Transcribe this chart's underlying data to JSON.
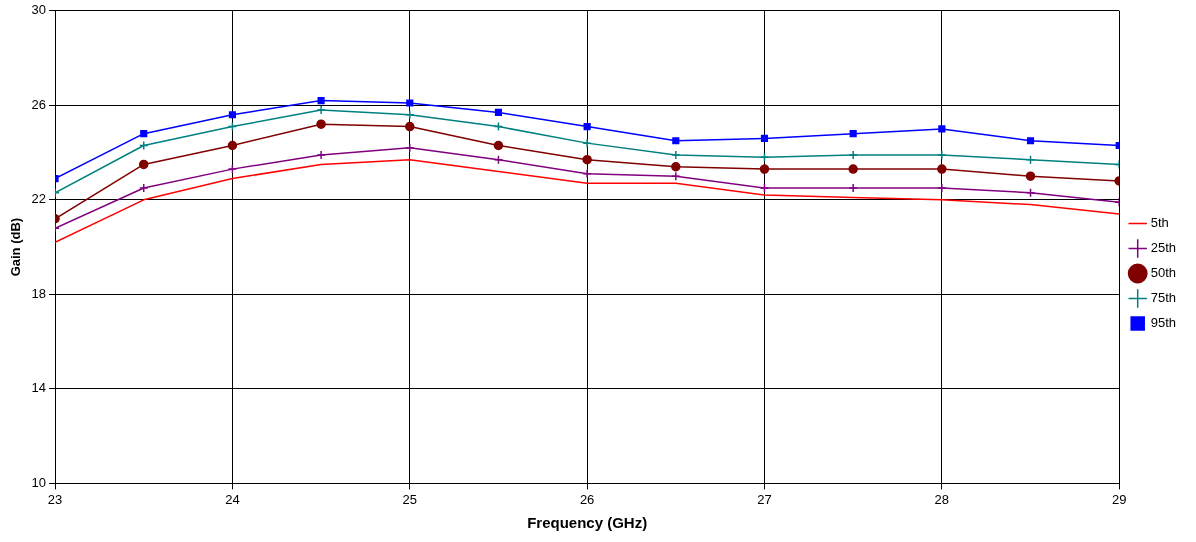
{
  "chart_data": {
    "type": "line",
    "xlabel": "Frequency (GHz)",
    "ylabel": "Gain (dB)",
    "x": [
      23,
      23.5,
      24,
      24.5,
      25,
      25.5,
      26,
      26.5,
      27,
      27.5,
      28,
      28.5,
      29
    ],
    "xlim": [
      23,
      29
    ],
    "xticks": [
      23,
      24,
      25,
      26,
      27,
      28,
      29
    ],
    "ylim": [
      10,
      30
    ],
    "yticks": [
      10,
      14,
      18,
      22,
      26,
      30
    ],
    "grid": true,
    "legend": "right",
    "line_style": "solid",
    "series": [
      {
        "name": "5th",
        "color": "#ff0000",
        "marker": "none",
        "values": [
          20.2,
          22.0,
          22.9,
          23.5,
          23.7,
          23.2,
          22.7,
          22.7,
          22.2,
          22.1,
          22.0,
          21.8,
          21.4
        ]
      },
      {
        "name": "25th",
        "color": "#800080",
        "marker": "cross",
        "values": [
          20.8,
          22.5,
          23.3,
          23.9,
          24.2,
          23.7,
          23.1,
          23.0,
          22.5,
          22.5,
          22.5,
          22.3,
          21.9
        ]
      },
      {
        "name": "50th",
        "color": "#800000",
        "marker": "circle",
        "values": [
          21.2,
          23.5,
          24.3,
          25.2,
          25.1,
          24.3,
          23.7,
          23.4,
          23.3,
          23.3,
          23.3,
          23.0,
          22.8
        ]
      },
      {
        "name": "75th",
        "color": "#008080",
        "marker": "cross",
        "values": [
          22.3,
          24.3,
          25.1,
          25.8,
          25.6,
          25.1,
          24.4,
          23.9,
          23.8,
          23.9,
          23.9,
          23.7,
          23.5
        ]
      },
      {
        "name": "95th",
        "color": "#0000ff",
        "marker": "square",
        "values": [
          22.9,
          24.8,
          25.6,
          26.2,
          26.1,
          25.7,
          25.1,
          24.5,
          24.6,
          24.8,
          25.0,
          24.5,
          24.3
        ]
      }
    ]
  }
}
